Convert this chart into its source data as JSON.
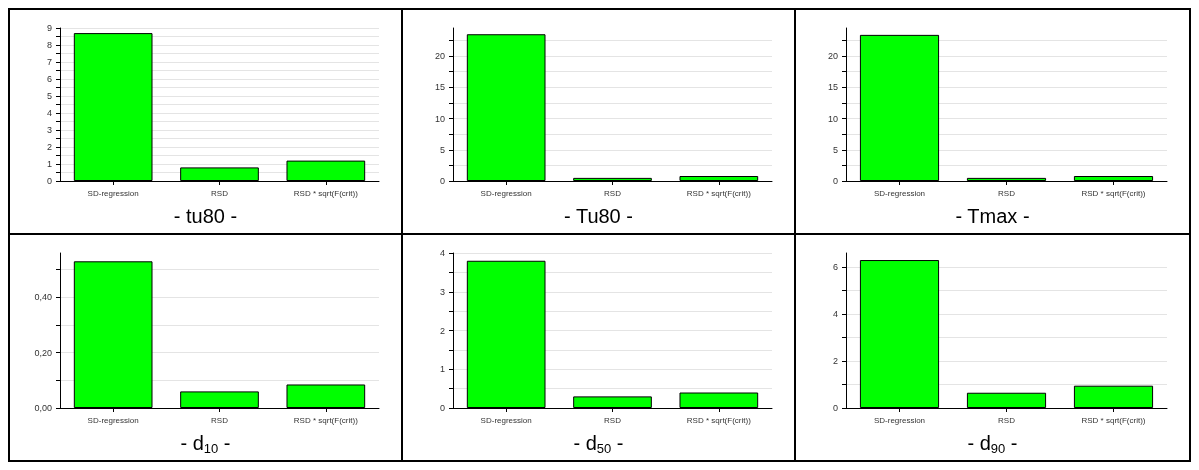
{
  "chart_data": [
    {
      "type": "bar",
      "title": "- tu80 -",
      "categories": [
        "SD-regression",
        "RSD",
        "RSD * sqrt(F(crit))"
      ],
      "values": [
        8.7,
        0.8,
        1.2
      ],
      "color": "#00ff00",
      "ylim": [
        0,
        9
      ],
      "yticks": [
        0,
        {
          "value": 0.5,
          "label": null
        },
        1,
        {
          "value": 1.5,
          "label": null
        },
        2,
        {
          "value": 2.5,
          "label": null
        },
        3,
        {
          "value": 3.5,
          "label": null
        },
        4,
        {
          "value": 4.5,
          "label": null
        },
        5,
        {
          "value": 5.5,
          "label": null
        },
        6,
        {
          "value": 6.5,
          "label": null
        },
        7,
        {
          "value": 7.5,
          "label": null
        },
        8,
        {
          "value": 8.5,
          "label": null
        },
        9
      ],
      "grid": "y"
    },
    {
      "type": "bar",
      "title": "- Tu80 -",
      "categories": [
        "SD-regression",
        "RSD",
        "RSD * sqrt(F(crit))"
      ],
      "values": [
        23.5,
        0.5,
        0.8
      ],
      "color": "#00ff00",
      "ylim": [
        0,
        24.5
      ],
      "yticks": [
        0,
        {
          "value": 2.5,
          "label": null
        },
        5,
        {
          "value": 7.5,
          "label": null
        },
        10,
        {
          "value": 12.5,
          "label": null
        },
        15,
        {
          "value": 17.5,
          "label": null
        },
        20,
        {
          "value": 22.5,
          "label": null
        }
      ],
      "grid": "y"
    },
    {
      "type": "bar",
      "title": "- Tmax -",
      "categories": [
        "SD-regression",
        "RSD",
        "RSD * sqrt(F(crit))"
      ],
      "values": [
        23.4,
        0.5,
        0.8
      ],
      "color": "#00ff00",
      "ylim": [
        0,
        24.5
      ],
      "yticks": [
        0,
        {
          "value": 2.5,
          "label": null
        },
        5,
        {
          "value": 7.5,
          "label": null
        },
        10,
        {
          "value": 12.5,
          "label": null
        },
        15,
        {
          "value": 17.5,
          "label": null
        },
        20,
        {
          "value": 22.5,
          "label": null
        }
      ],
      "grid": "y"
    },
    {
      "type": "bar",
      "title": "- d$_{10}$ -",
      "categories": [
        "SD-regression",
        "RSD",
        "RSD * sqrt(F(crit))"
      ],
      "values": [
        0.53,
        0.06,
        0.085
      ],
      "color": "#00ff00",
      "ylim": [
        0,
        0.56
      ],
      "yticks": [
        {
          "value": 0,
          "label": "0,00"
        },
        {
          "value": 0.1,
          "label": null
        },
        {
          "value": 0.2,
          "label": "0,20"
        },
        {
          "value": 0.3,
          "label": null
        },
        {
          "value": 0.4,
          "label": "0,40"
        },
        {
          "value": 0.5,
          "label": null
        }
      ],
      "grid": "y"
    },
    {
      "type": "bar",
      "title": "- d$_{50}$ -",
      "categories": [
        "SD-regression",
        "RSD",
        "RSD * sqrt(F(crit))"
      ],
      "values": [
        3.8,
        0.3,
        0.4
      ],
      "color": "#00ff00",
      "ylim": [
        0,
        4
      ],
      "yticks": [
        0,
        {
          "value": 0.5,
          "label": null
        },
        1,
        {
          "value": 1.5,
          "label": null
        },
        2,
        {
          "value": 2.5,
          "label": null
        },
        3,
        {
          "value": 3.5,
          "label": null
        },
        4
      ],
      "grid": "y"
    },
    {
      "type": "bar",
      "title": "- d$_{90}$ -",
      "categories": [
        "SD-regression",
        "RSD",
        "RSD * sqrt(F(crit))"
      ],
      "values": [
        6.3,
        0.65,
        0.95
      ],
      "color": "#00ff00",
      "ylim": [
        0,
        6.6
      ],
      "yticks": [
        0,
        {
          "value": 1,
          "label": null
        },
        2,
        {
          "value": 3,
          "label": null
        },
        4,
        {
          "value": 5,
          "label": null
        },
        6
      ],
      "grid": "y"
    }
  ]
}
